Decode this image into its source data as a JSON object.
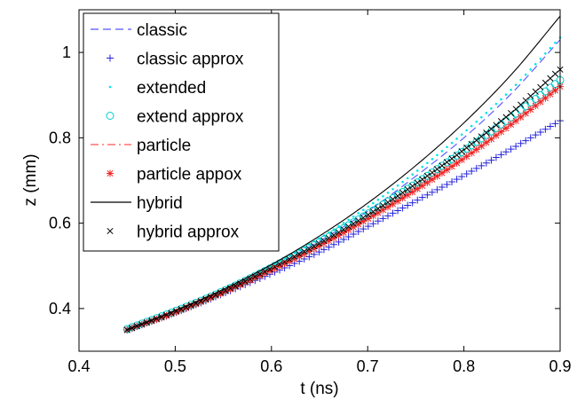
{
  "chart_data": {
    "type": "line",
    "title": "",
    "xlabel": "t (ns)",
    "ylabel": "z (mm)",
    "xlim": [
      0.4,
      0.9
    ],
    "ylim": [
      0.3,
      1.1
    ],
    "xticks": [
      0.4,
      0.5,
      0.6,
      0.7,
      0.8,
      0.9
    ],
    "xtick_labels": [
      "0.4",
      "0.5",
      "0.6",
      "0.7",
      "0.8",
      "0.9"
    ],
    "yticks": [
      0.4,
      0.6,
      0.8,
      1.0
    ],
    "ytick_labels": [
      "0.4",
      "0.6",
      "0.8",
      "1"
    ],
    "grid": false,
    "legend_position": "top-left",
    "series": [
      {
        "name": "classic",
        "style": "dashed",
        "color": "#5555ff",
        "x": [
          0.45,
          0.5,
          0.55,
          0.6,
          0.65,
          0.7,
          0.75,
          0.8,
          0.85,
          0.9
        ],
        "y": [
          0.35,
          0.392,
          0.44,
          0.495,
          0.558,
          0.628,
          0.71,
          0.8,
          0.905,
          1.03
        ]
      },
      {
        "name": "classic approx",
        "style": "marker-plus",
        "color": "#2222dd",
        "x": [
          0.45,
          0.5,
          0.55,
          0.6,
          0.65,
          0.7,
          0.75,
          0.8,
          0.85,
          0.9
        ],
        "y": [
          0.35,
          0.39,
          0.435,
          0.482,
          0.533,
          0.592,
          0.652,
          0.712,
          0.775,
          0.84
        ]
      },
      {
        "name": "extended",
        "style": "marker-dot",
        "color": "#00e5e5",
        "x": [
          0.45,
          0.5,
          0.55,
          0.6,
          0.65,
          0.7,
          0.75,
          0.8,
          0.85,
          0.9
        ],
        "y": [
          0.352,
          0.395,
          0.443,
          0.5,
          0.565,
          0.638,
          0.72,
          0.812,
          0.915,
          1.035
        ]
      },
      {
        "name": "extend approx",
        "style": "marker-circle",
        "color": "#00cccc",
        "x": [
          0.45,
          0.5,
          0.55,
          0.6,
          0.65,
          0.7,
          0.75,
          0.8,
          0.85,
          0.9
        ],
        "y": [
          0.352,
          0.394,
          0.441,
          0.496,
          0.556,
          0.622,
          0.693,
          0.77,
          0.85,
          0.935
        ]
      },
      {
        "name": "particle",
        "style": "dashdot",
        "color": "#ff5555",
        "x": [
          0.45,
          0.5,
          0.55,
          0.6,
          0.65,
          0.7,
          0.75,
          0.8,
          0.85,
          0.9
        ],
        "y": [
          0.35,
          0.391,
          0.438,
          0.49,
          0.547,
          0.61,
          0.678,
          0.752,
          0.833,
          0.92
        ]
      },
      {
        "name": "particle appox",
        "style": "marker-star",
        "color": "#ee2222",
        "x": [
          0.45,
          0.5,
          0.55,
          0.6,
          0.65,
          0.7,
          0.75,
          0.8,
          0.85,
          0.9
        ],
        "y": [
          0.35,
          0.391,
          0.438,
          0.49,
          0.547,
          0.61,
          0.678,
          0.752,
          0.833,
          0.92
        ]
      },
      {
        "name": "hybrid",
        "style": "solid",
        "color": "#000000",
        "x": [
          0.45,
          0.5,
          0.55,
          0.6,
          0.65,
          0.7,
          0.75,
          0.8,
          0.85,
          0.9
        ],
        "y": [
          0.35,
          0.395,
          0.445,
          0.503,
          0.57,
          0.647,
          0.735,
          0.835,
          0.95,
          1.085
        ]
      },
      {
        "name": "hybrid approx",
        "style": "marker-x",
        "color": "#000000",
        "x": [
          0.45,
          0.5,
          0.55,
          0.6,
          0.65,
          0.7,
          0.75,
          0.8,
          0.85,
          0.9
        ],
        "y": [
          0.35,
          0.393,
          0.44,
          0.494,
          0.553,
          0.619,
          0.692,
          0.772,
          0.86,
          0.96
        ]
      }
    ]
  }
}
